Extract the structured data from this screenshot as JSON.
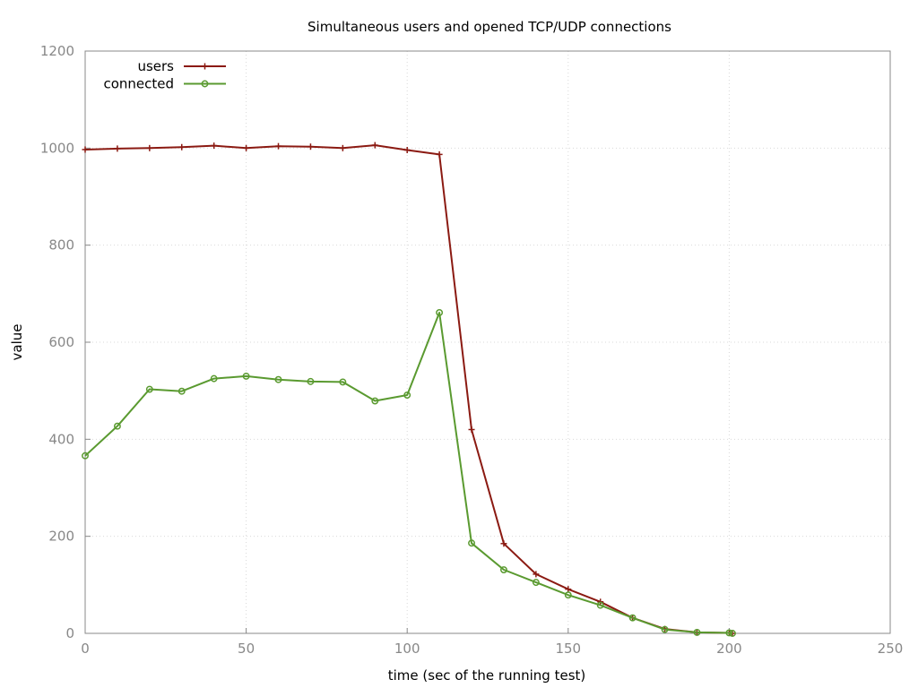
{
  "chart_data": {
    "type": "line",
    "title": "Simultaneous users and opened TCP/UDP connections",
    "xlabel": "time (sec of the running test)",
    "ylabel": "value",
    "xlim": [
      0,
      250
    ],
    "ylim": [
      0,
      1200
    ],
    "xticks": [
      0,
      50,
      100,
      150,
      200,
      250
    ],
    "yticks": [
      0,
      200,
      400,
      600,
      800,
      1000,
      1200
    ],
    "grid": true,
    "legend": "top-left",
    "series": [
      {
        "name": "users",
        "color": "#8b1a12",
        "marker": "plus",
        "x": [
          0,
          10,
          20,
          30,
          40,
          50,
          60,
          70,
          80,
          90,
          100,
          110,
          120,
          130,
          140,
          150,
          160,
          170,
          180,
          190,
          200,
          201
        ],
        "y": [
          997,
          999,
          1000,
          1002,
          1005,
          1000,
          1004,
          1003,
          1000,
          1006,
          996,
          987,
          420,
          185,
          122,
          91,
          65,
          32,
          9,
          2,
          1,
          0
        ]
      },
      {
        "name": "connected",
        "color": "#5a9a30",
        "marker": "circle",
        "x": [
          0,
          10,
          20,
          30,
          40,
          50,
          60,
          70,
          80,
          90,
          100,
          110,
          120,
          130,
          140,
          150,
          160,
          170,
          180,
          190,
          200,
          201
        ],
        "y": [
          366,
          427,
          503,
          499,
          525,
          530,
          523,
          519,
          518,
          479,
          491,
          661,
          186,
          131,
          105,
          79,
          58,
          32,
          8,
          2,
          1,
          0
        ]
      }
    ]
  }
}
